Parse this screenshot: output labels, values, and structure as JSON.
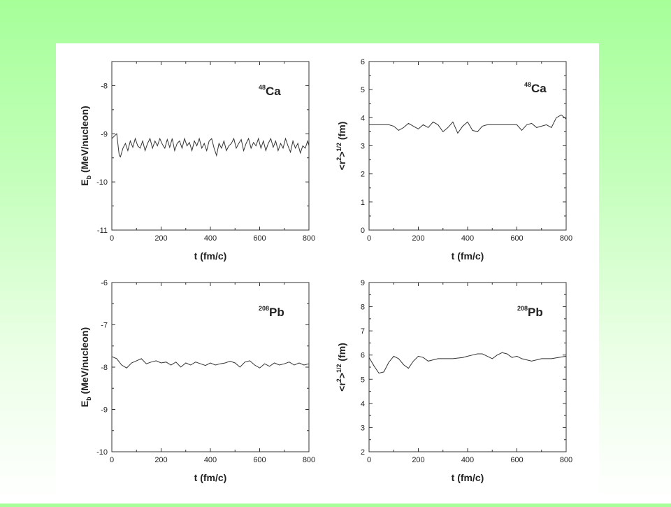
{
  "chart_data": [
    {
      "type": "line",
      "x_min": 0,
      "x_max": 800,
      "y_min": -11,
      "y_max": -7.5,
      "x_ticks": [
        0,
        200,
        400,
        600,
        800
      ],
      "y_ticks": [
        -11,
        -10,
        -9,
        -8
      ],
      "y_tick_labels": [
        "-11",
        "-10",
        "-9",
        "-8"
      ],
      "xlabel": "t (fm/c)",
      "ylabel_main": "E",
      "ylabel_sub": "b",
      "ylabel_tail": " (MeV/nucleon)",
      "nucleus_mass": "48",
      "nucleus_symbol": "Ca",
      "series": [
        {
          "x": [
            0,
            10,
            20,
            30,
            35,
            45,
            55,
            65,
            75,
            85,
            95,
            105,
            115,
            125,
            135,
            145,
            155,
            165,
            175,
            185,
            195,
            205,
            215,
            225,
            235,
            245,
            255,
            265,
            275,
            285,
            295,
            305,
            315,
            325,
            335,
            345,
            355,
            365,
            375,
            385,
            395,
            405,
            415,
            425,
            435,
            445,
            455,
            465,
            475,
            485,
            495,
            505,
            515,
            525,
            535,
            545,
            555,
            565,
            575,
            585,
            595,
            605,
            615,
            625,
            635,
            645,
            655,
            665,
            675,
            685,
            695,
            705,
            715,
            725,
            735,
            745,
            755,
            765,
            775,
            785,
            795,
            800
          ],
          "y": [
            -9.1,
            -9.05,
            -9.0,
            -9.45,
            -9.48,
            -9.3,
            -9.2,
            -9.35,
            -9.15,
            -9.28,
            -9.1,
            -9.25,
            -9.3,
            -9.15,
            -9.35,
            -9.2,
            -9.1,
            -9.3,
            -9.15,
            -9.25,
            -9.1,
            -9.22,
            -9.3,
            -9.12,
            -9.28,
            -9.1,
            -9.35,
            -9.2,
            -9.15,
            -9.3,
            -9.1,
            -9.25,
            -9.18,
            -9.35,
            -9.15,
            -9.25,
            -9.1,
            -9.3,
            -9.2,
            -9.35,
            -9.15,
            -9.1,
            -9.3,
            -9.45,
            -9.2,
            -9.3,
            -9.15,
            -9.35,
            -9.25,
            -9.2,
            -9.1,
            -9.3,
            -9.2,
            -9.12,
            -9.35,
            -9.2,
            -9.1,
            -9.3,
            -9.18,
            -9.25,
            -9.1,
            -9.3,
            -9.15,
            -9.35,
            -9.2,
            -9.1,
            -9.28,
            -9.15,
            -9.35,
            -9.2,
            -9.3,
            -9.1,
            -9.25,
            -9.38,
            -9.15,
            -9.3,
            -9.2,
            -9.4,
            -9.25,
            -9.3,
            -9.15,
            -9.25
          ]
        }
      ]
    },
    {
      "type": "line",
      "x_min": 0,
      "x_max": 800,
      "y_min": 0,
      "y_max": 6,
      "x_ticks": [
        0,
        200,
        400,
        600,
        800
      ],
      "y_ticks": [
        0,
        1,
        2,
        3,
        4,
        5,
        6
      ],
      "y_tick_labels": [
        "0",
        "1",
        "2",
        "3",
        "4",
        "5",
        "6"
      ],
      "xlabel": "t (fm/c)",
      "ylabel_pre": "<r",
      "ylabel_sup1": "2",
      "ylabel_mid": ">",
      "ylabel_sup2": "1/2",
      "ylabel_tail": " (fm)",
      "nucleus_mass": "48",
      "nucleus_symbol": "Ca",
      "series": [
        {
          "x": [
            0,
            40,
            80,
            100,
            120,
            140,
            160,
            180,
            200,
            220,
            240,
            260,
            280,
            300,
            320,
            340,
            360,
            380,
            400,
            420,
            440,
            460,
            480,
            500,
            520,
            540,
            560,
            600,
            620,
            640,
            660,
            680,
            700,
            720,
            740,
            760,
            780,
            800
          ],
          "y": [
            3.75,
            3.75,
            3.75,
            3.7,
            3.55,
            3.65,
            3.8,
            3.7,
            3.6,
            3.75,
            3.65,
            3.85,
            3.75,
            3.5,
            3.65,
            3.85,
            3.45,
            3.7,
            3.85,
            3.55,
            3.5,
            3.7,
            3.75,
            3.75,
            3.75,
            3.75,
            3.75,
            3.75,
            3.55,
            3.75,
            3.8,
            3.65,
            3.7,
            3.75,
            3.65,
            4.0,
            4.1,
            3.95
          ]
        }
      ]
    },
    {
      "type": "line",
      "x_min": 0,
      "x_max": 800,
      "y_min": -10,
      "y_max": -6,
      "x_ticks": [
        0,
        200,
        400,
        600,
        800
      ],
      "y_ticks": [
        -10,
        -9,
        -8,
        -7,
        -6
      ],
      "y_tick_labels": [
        "-10",
        "-9",
        "-8",
        "-7",
        "-6"
      ],
      "xlabel": "t (fm/c)",
      "ylabel_main": "E",
      "ylabel_sub": "b",
      "ylabel_tail": " (MeV/nucleon)",
      "nucleus_mass": "208",
      "nucleus_symbol": "Pb",
      "series": [
        {
          "x": [
            0,
            20,
            40,
            60,
            80,
            100,
            120,
            140,
            160,
            180,
            200,
            220,
            240,
            260,
            280,
            300,
            320,
            340,
            360,
            380,
            400,
            420,
            440,
            460,
            480,
            500,
            520,
            540,
            560,
            580,
            600,
            620,
            640,
            660,
            680,
            700,
            720,
            740,
            760,
            780,
            800
          ],
          "y": [
            -7.75,
            -7.8,
            -7.95,
            -8.02,
            -7.9,
            -7.85,
            -7.8,
            -7.92,
            -7.88,
            -7.85,
            -7.9,
            -7.88,
            -7.95,
            -7.88,
            -8.0,
            -7.9,
            -7.95,
            -7.88,
            -7.92,
            -7.96,
            -7.9,
            -7.95,
            -7.92,
            -7.9,
            -7.86,
            -7.9,
            -8.0,
            -7.88,
            -7.85,
            -7.95,
            -8.02,
            -7.92,
            -7.98,
            -7.9,
            -7.95,
            -7.92,
            -7.88,
            -7.95,
            -7.9,
            -7.95,
            -7.92
          ]
        }
      ]
    },
    {
      "type": "line",
      "x_min": 0,
      "x_max": 800,
      "y_min": 2,
      "y_max": 9,
      "x_ticks": [
        0,
        200,
        400,
        600,
        800
      ],
      "y_ticks": [
        2,
        3,
        4,
        5,
        6,
        7,
        8,
        9
      ],
      "y_tick_labels": [
        "2",
        "3",
        "4",
        "5",
        "6",
        "7",
        "8",
        "9"
      ],
      "xlabel": "t (fm/c)",
      "ylabel_pre": "<r",
      "ylabel_sup1": "2",
      "ylabel_mid": ">",
      "ylabel_sup2": "1/2",
      "ylabel_tail": " (fm)",
      "nucleus_mass": "208",
      "nucleus_symbol": "Pb",
      "series": [
        {
          "x": [
            0,
            20,
            40,
            60,
            80,
            100,
            120,
            140,
            160,
            180,
            200,
            220,
            240,
            260,
            280,
            300,
            340,
            380,
            400,
            420,
            440,
            460,
            480,
            500,
            520,
            540,
            560,
            580,
            600,
            620,
            640,
            660,
            680,
            700,
            740,
            800
          ],
          "y": [
            5.9,
            5.55,
            5.25,
            5.3,
            5.7,
            5.95,
            5.85,
            5.6,
            5.45,
            5.75,
            5.95,
            5.9,
            5.75,
            5.8,
            5.85,
            5.85,
            5.85,
            5.9,
            5.95,
            6.0,
            6.05,
            6.05,
            5.95,
            5.85,
            6.0,
            6.1,
            6.05,
            5.9,
            5.95,
            5.85,
            5.8,
            5.75,
            5.8,
            5.85,
            5.85,
            5.95
          ]
        }
      ]
    }
  ]
}
